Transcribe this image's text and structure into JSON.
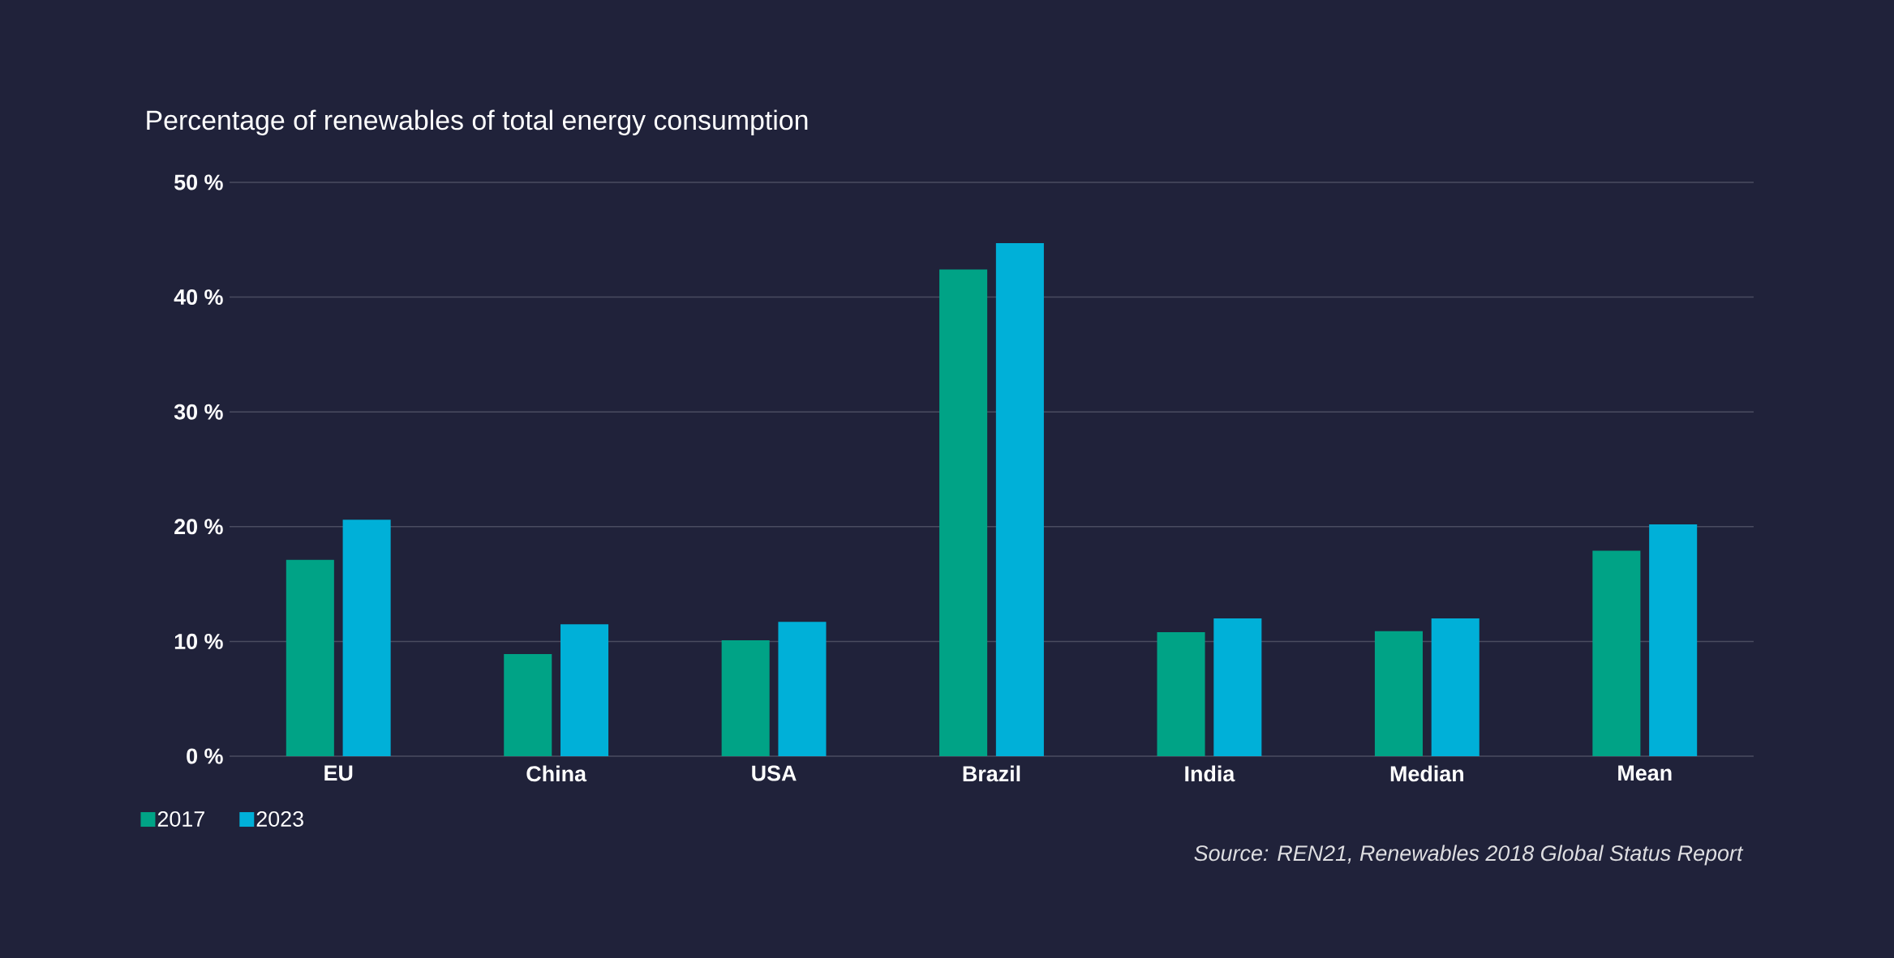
{
  "chart_data": {
    "type": "bar",
    "title": "Percentage of renewables of total energy consumption",
    "categories": [
      "EU",
      "China",
      "USA",
      "Brazil",
      "India",
      "Median",
      "Mean"
    ],
    "series": [
      {
        "name": "2017",
        "color": "#00a386",
        "values": [
          17.1,
          8.9,
          10.1,
          42.4,
          10.8,
          10.9,
          17.9
        ]
      },
      {
        "name": "2023",
        "color": "#00b0d8",
        "values": [
          20.6,
          11.5,
          11.7,
          44.7,
          12.0,
          12.0,
          20.2
        ]
      }
    ],
    "ylim": [
      0,
      50
    ],
    "yticks": [
      {
        "value": 0,
        "label": "0 %"
      },
      {
        "value": 10,
        "label": "10 %"
      },
      {
        "value": 20,
        "label": "20 %"
      },
      {
        "value": 30,
        "label": "30 %"
      },
      {
        "value": 40,
        "label": "40 %"
      },
      {
        "value": 50,
        "label": "50 %"
      }
    ],
    "grid": "y",
    "legend": "bottom left",
    "annotations": [
      "Source: REN21, Renewables 2018 Global Status Report"
    ]
  }
}
